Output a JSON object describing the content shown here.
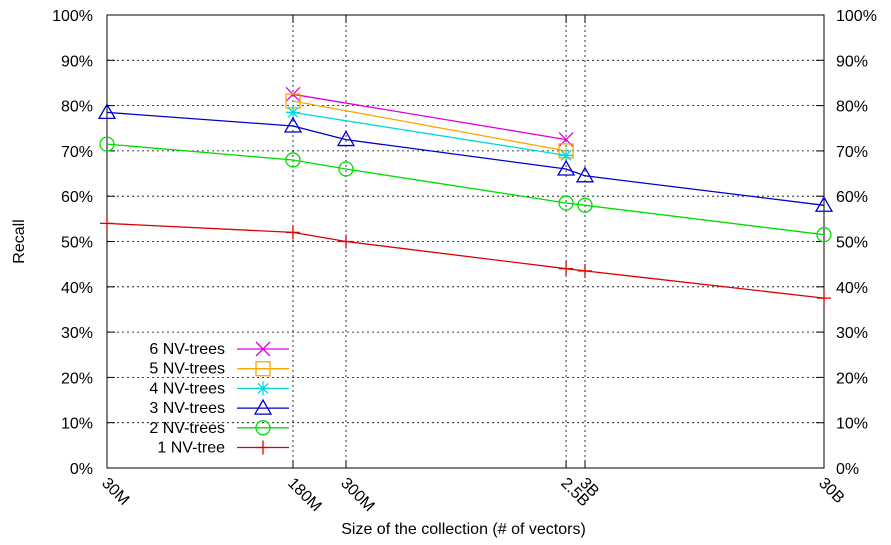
{
  "chart_data": {
    "type": "line",
    "xlabel": "Size of the collection (# of vectors)",
    "ylabel": "Recall",
    "x_scale": "log",
    "x_ticks": [
      {
        "value": 30000000,
        "label": "30M"
      },
      {
        "value": 180000000,
        "label": "180M"
      },
      {
        "value": 300000000,
        "label": "300M"
      },
      {
        "value": 2500000000,
        "label": "2.5B"
      },
      {
        "value": 3000000000,
        "label": "3B"
      },
      {
        "value": 30000000000,
        "label": "30B"
      }
    ],
    "x_grid_values": [
      180000000,
      300000000,
      2500000000,
      3000000000
    ],
    "ylim": [
      0,
      100
    ],
    "y_ticks": [
      {
        "value": 0,
        "label": "0%"
      },
      {
        "value": 10,
        "label": "10%"
      },
      {
        "value": 20,
        "label": "20%"
      },
      {
        "value": 30,
        "label": "30%"
      },
      {
        "value": 40,
        "label": "40%"
      },
      {
        "value": 50,
        "label": "50%"
      },
      {
        "value": 60,
        "label": "60%"
      },
      {
        "value": 70,
        "label": "70%"
      },
      {
        "value": 80,
        "label": "80%"
      },
      {
        "value": 90,
        "label": "90%"
      },
      {
        "value": 100,
        "label": "100%"
      }
    ],
    "legend_position": "bottom-left",
    "series": [
      {
        "name": "6 NV-trees",
        "color": "#e000e0",
        "marker": "x",
        "points": [
          [
            180000000,
            82.5
          ],
          [
            2500000000,
            72.5
          ]
        ]
      },
      {
        "name": "5 NV-trees",
        "color": "#ffa500",
        "marker": "square",
        "points": [
          [
            180000000,
            81.0
          ],
          [
            2500000000,
            70.0
          ]
        ]
      },
      {
        "name": "4 NV-trees",
        "color": "#00d8e0",
        "marker": "star",
        "points": [
          [
            180000000,
            78.5
          ],
          [
            2500000000,
            69.0
          ]
        ]
      },
      {
        "name": "3 NV-trees",
        "color": "#0000cc",
        "marker": "triangle",
        "points": [
          [
            30000000,
            78.5
          ],
          [
            180000000,
            75.5
          ],
          [
            300000000,
            72.5
          ],
          [
            2500000000,
            66.0
          ],
          [
            3000000000,
            64.5
          ],
          [
            30000000000,
            58.0
          ]
        ]
      },
      {
        "name": "2 NV-trees",
        "color": "#00dd00",
        "marker": "circle",
        "points": [
          [
            30000000,
            71.5
          ],
          [
            180000000,
            68.0
          ],
          [
            300000000,
            66.0
          ],
          [
            2500000000,
            58.5
          ],
          [
            3000000000,
            58.0
          ],
          [
            30000000000,
            51.5
          ]
        ]
      },
      {
        "name": "1 NV-tree",
        "color": "#dd0000",
        "marker": "plus",
        "points": [
          [
            30000000,
            54.0
          ],
          [
            180000000,
            52.0
          ],
          [
            300000000,
            50.0
          ],
          [
            2500000000,
            44.0
          ],
          [
            3000000000,
            43.5
          ],
          [
            30000000000,
            37.5
          ]
        ]
      }
    ]
  }
}
